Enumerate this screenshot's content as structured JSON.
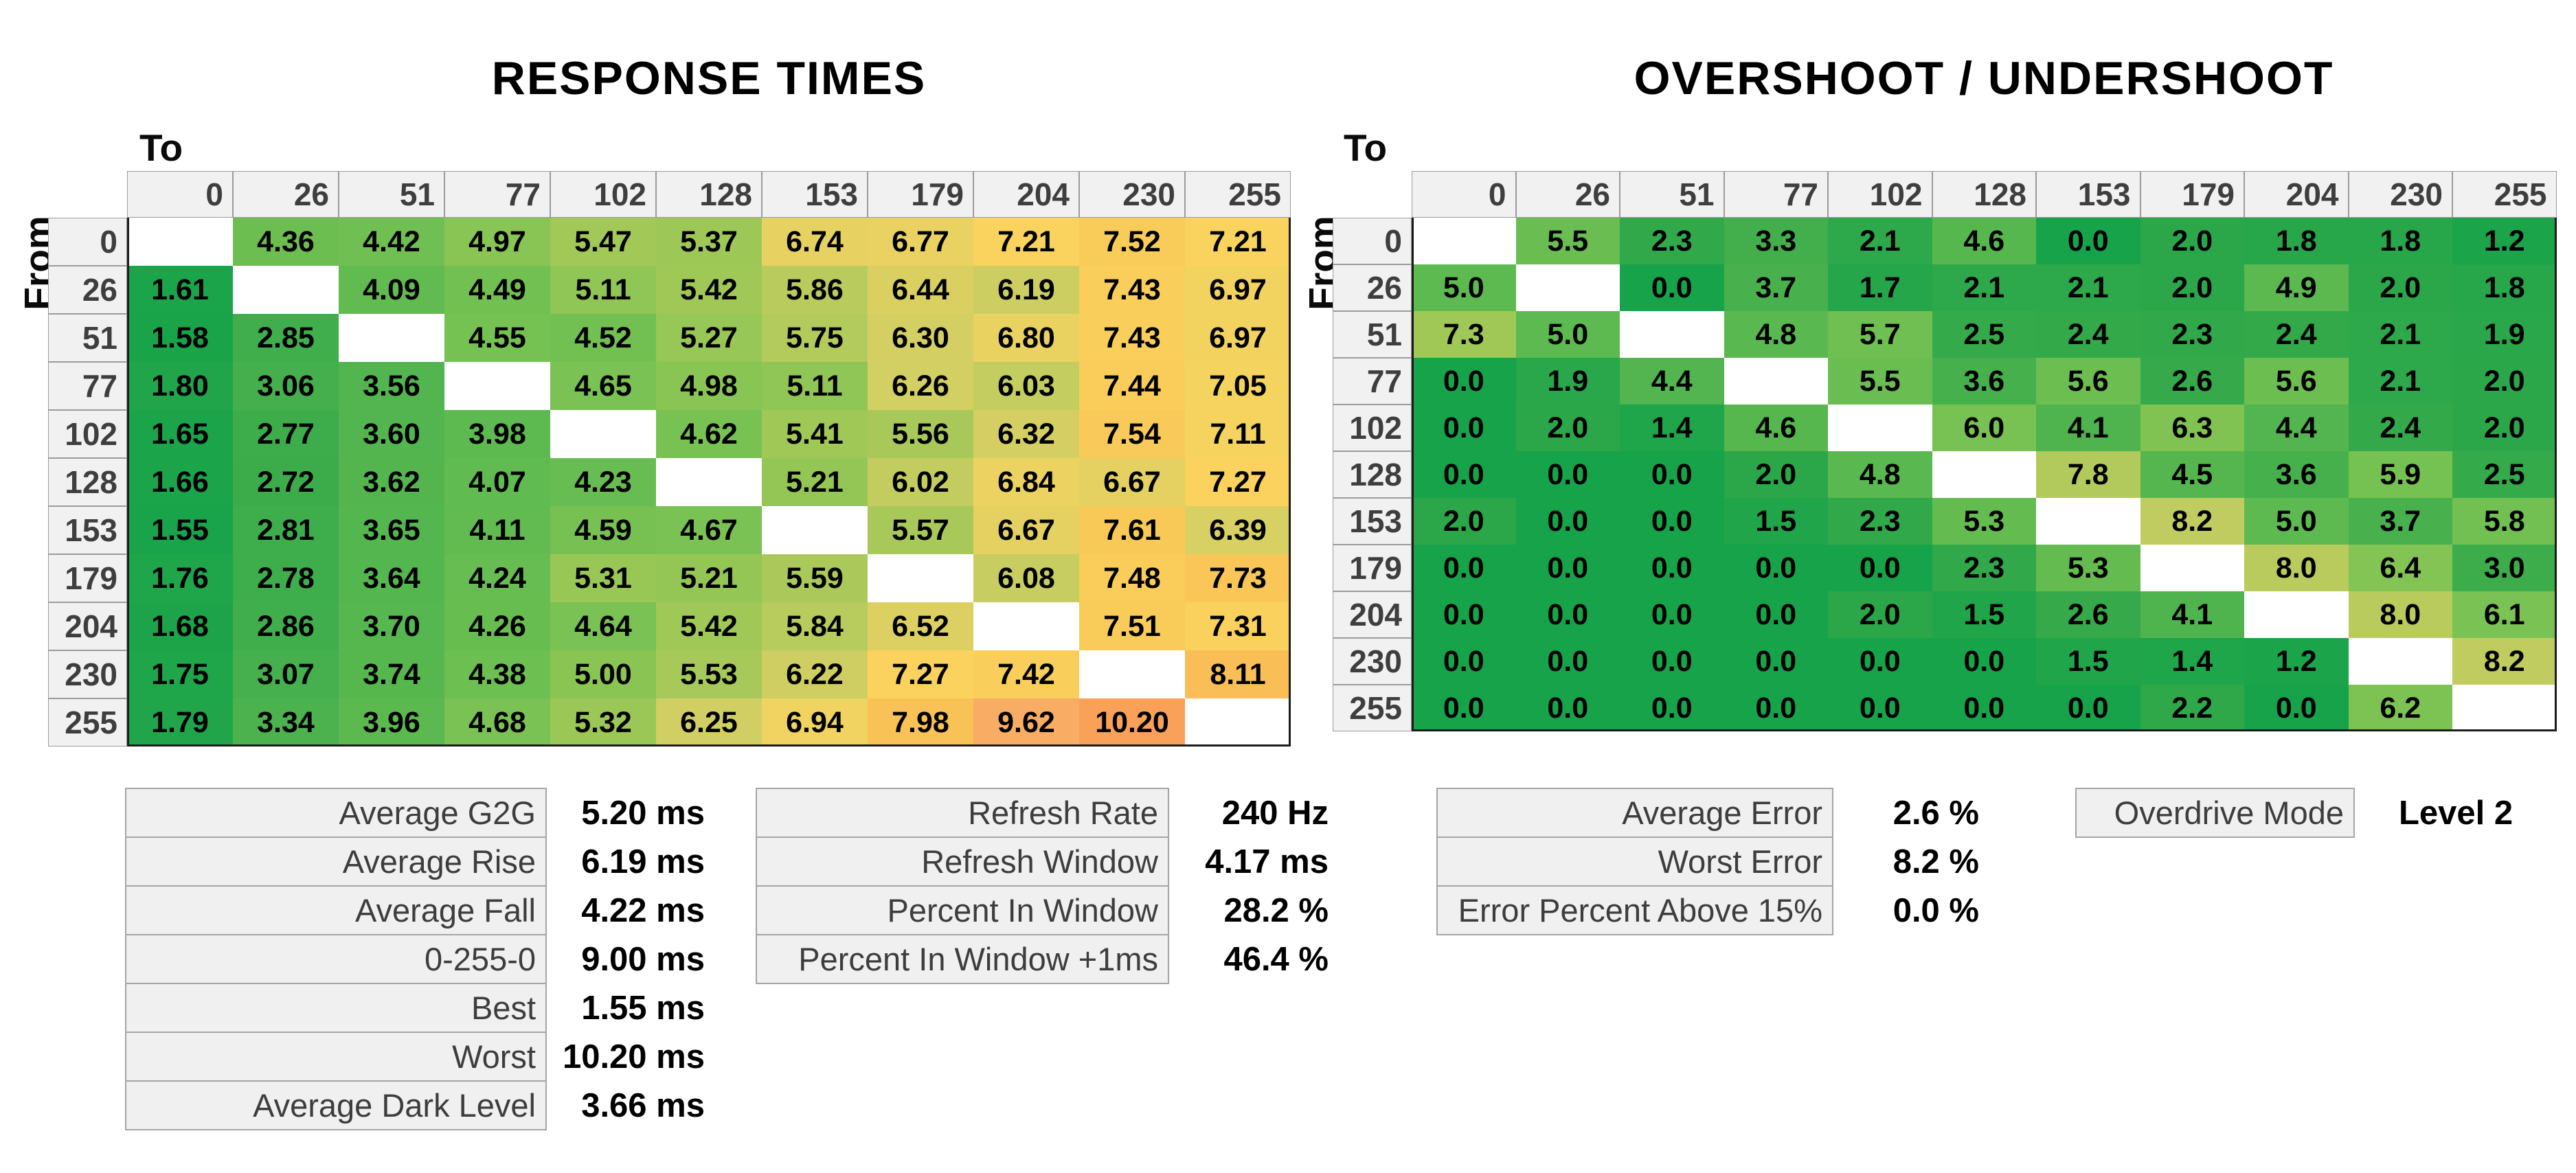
{
  "axis": {
    "to": "To",
    "from": "From"
  },
  "levels": [
    "0",
    "26",
    "51",
    "77",
    "102",
    "128",
    "153",
    "179",
    "204",
    "230",
    "255"
  ],
  "chart_data": [
    {
      "type": "heatmap",
      "title": "RESPONSE TIMES",
      "unit": "ms",
      "value_decimals": 2,
      "x_axis_label": "To",
      "y_axis_label": "From",
      "categories": [
        0,
        26,
        51,
        77,
        102,
        128,
        153,
        179,
        204,
        230,
        255
      ],
      "rows": [
        [
          null,
          4.36,
          4.42,
          4.97,
          5.47,
          5.37,
          6.74,
          6.77,
          7.21,
          7.52,
          7.21
        ],
        [
          1.61,
          null,
          4.09,
          4.49,
          5.11,
          5.42,
          5.86,
          6.44,
          6.19,
          7.43,
          6.97
        ],
        [
          1.58,
          2.85,
          null,
          4.55,
          4.52,
          5.27,
          5.75,
          6.3,
          6.8,
          7.43,
          6.97
        ],
        [
          1.8,
          3.06,
          3.56,
          null,
          4.65,
          4.98,
          5.11,
          6.26,
          6.03,
          7.44,
          7.05
        ],
        [
          1.65,
          2.77,
          3.6,
          3.98,
          null,
          4.62,
          5.41,
          5.56,
          6.32,
          7.54,
          7.11
        ],
        [
          1.66,
          2.72,
          3.62,
          4.07,
          4.23,
          null,
          5.21,
          6.02,
          6.84,
          6.67,
          7.27
        ],
        [
          1.55,
          2.81,
          3.65,
          4.11,
          4.59,
          4.67,
          null,
          5.57,
          6.67,
          7.61,
          6.39
        ],
        [
          1.76,
          2.78,
          3.64,
          4.24,
          5.31,
          5.21,
          5.59,
          null,
          6.08,
          7.48,
          7.73
        ],
        [
          1.68,
          2.86,
          3.7,
          4.26,
          4.64,
          5.42,
          5.84,
          6.52,
          null,
          7.51,
          7.31
        ],
        [
          1.75,
          3.07,
          3.74,
          4.38,
          5.0,
          5.53,
          6.22,
          7.27,
          7.42,
          null,
          8.11
        ],
        [
          1.79,
          3.34,
          3.96,
          4.68,
          5.32,
          6.25,
          6.94,
          7.98,
          9.62,
          10.2,
          null
        ]
      ],
      "color_domain": [
        1.5,
        10.2
      ]
    },
    {
      "type": "heatmap",
      "title": "OVERSHOOT / UNDERSHOOT",
      "unit": "%",
      "value_decimals": 1,
      "x_axis_label": "To",
      "y_axis_label": "From",
      "categories": [
        0,
        26,
        51,
        77,
        102,
        128,
        153,
        179,
        204,
        230,
        255
      ],
      "rows": [
        [
          null,
          5.5,
          2.3,
          3.3,
          2.1,
          4.6,
          0.0,
          2.0,
          1.8,
          1.8,
          1.2
        ],
        [
          5.0,
          null,
          0.0,
          3.7,
          1.7,
          2.1,
          2.1,
          2.0,
          4.9,
          2.0,
          1.8
        ],
        [
          7.3,
          5.0,
          null,
          4.8,
          5.7,
          2.5,
          2.4,
          2.3,
          2.4,
          2.1,
          1.9
        ],
        [
          0.0,
          1.9,
          4.4,
          null,
          5.5,
          3.6,
          5.6,
          2.6,
          5.6,
          2.1,
          2.0
        ],
        [
          0.0,
          2.0,
          1.4,
          4.6,
          null,
          6.0,
          4.1,
          6.3,
          4.4,
          2.4,
          2.0
        ],
        [
          0.0,
          0.0,
          0.0,
          2.0,
          4.8,
          null,
          7.8,
          4.5,
          3.6,
          5.9,
          2.5
        ],
        [
          2.0,
          0.0,
          0.0,
          1.5,
          2.3,
          5.3,
          null,
          8.2,
          5.0,
          3.7,
          5.8
        ],
        [
          0.0,
          0.0,
          0.0,
          0.0,
          0.0,
          2.3,
          5.3,
          null,
          8.0,
          6.4,
          3.0
        ],
        [
          0.0,
          0.0,
          0.0,
          0.0,
          2.0,
          1.5,
          2.6,
          4.1,
          null,
          8.0,
          6.1
        ],
        [
          0.0,
          0.0,
          0.0,
          0.0,
          0.0,
          0.0,
          1.5,
          1.4,
          1.2,
          null,
          8.2
        ],
        [
          0.0,
          0.0,
          0.0,
          0.0,
          0.0,
          0.0,
          0.0,
          2.2,
          0.0,
          6.2,
          null
        ]
      ],
      "color_domain": [
        1,
        15
      ]
    }
  ],
  "stats": {
    "response_summary": {
      "rows": [
        {
          "label": "Average G2G",
          "value": "5.20 ms"
        },
        {
          "label": "Average Rise",
          "value": "6.19 ms"
        },
        {
          "label": "Average Fall",
          "value": "4.22 ms"
        },
        {
          "label": "0-255-0",
          "value": "9.00 ms"
        },
        {
          "label": "Best",
          "value": "1.55 ms"
        },
        {
          "label": "Worst",
          "value": "10.20 ms"
        },
        {
          "label": "Average Dark Level",
          "value": "3.66 ms"
        }
      ]
    },
    "window_summary": {
      "rows": [
        {
          "label": "Refresh Rate",
          "value": "240 Hz"
        },
        {
          "label": "Refresh Window",
          "value": "4.17 ms"
        },
        {
          "label": "Percent In Window",
          "value": "28.2 %"
        },
        {
          "label": "Percent In Window +1ms",
          "value": "46.4 %"
        }
      ]
    },
    "error_summary": {
      "rows": [
        {
          "label": "Average Error",
          "value": "2.6 %"
        },
        {
          "label": "Worst Error",
          "value": "8.2 %"
        },
        {
          "label": "Error Percent Above 15%",
          "value": "0.0 %"
        }
      ]
    },
    "overdrive": {
      "rows": [
        {
          "label": "Overdrive Mode",
          "value": "Level 2"
        }
      ]
    }
  },
  "colors": {
    "background": "#ffffff",
    "header_bg": "#f1f1f1",
    "header_border": "#9b9b9b",
    "header_text": "#3e3e3e",
    "cell_text": "#000000",
    "table_frame": "#1c1c1c",
    "stats_label_bg": "#f0f0f0",
    "stats_label_border": "#a5a5a5",
    "stats_label_text": "#3d3d3d",
    "scale_stops": [
      [
        0.0,
        "#17a34a"
      ],
      [
        0.1,
        "#33a94a"
      ],
      [
        0.21,
        "#4cb24e"
      ],
      [
        0.29,
        "#5eba50"
      ],
      [
        0.37,
        "#7cc353"
      ],
      [
        0.44,
        "#9ac756"
      ],
      [
        0.55,
        "#d3cf63"
      ],
      [
        0.63,
        "#f2d360"
      ],
      [
        0.66,
        "#fbd35e"
      ],
      [
        0.7,
        "#f9c958"
      ],
      [
        0.78,
        "#f9bc55"
      ],
      [
        0.93,
        "#f9ad64"
      ],
      [
        1.0,
        "#f9a159"
      ]
    ]
  }
}
